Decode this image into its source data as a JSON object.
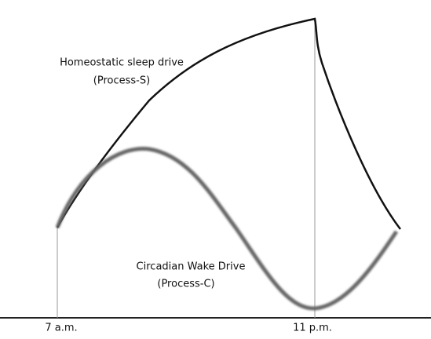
{
  "process_s": {
    "label": "Homeostatic sleep drive",
    "sublabel": "(Process-S)"
  },
  "process_c": {
    "label": "Circadian Wake Drive",
    "sublabel": "(Process-C)"
  },
  "time_labels": [
    "7 a.m.",
    "11 p.m."
  ]
}
